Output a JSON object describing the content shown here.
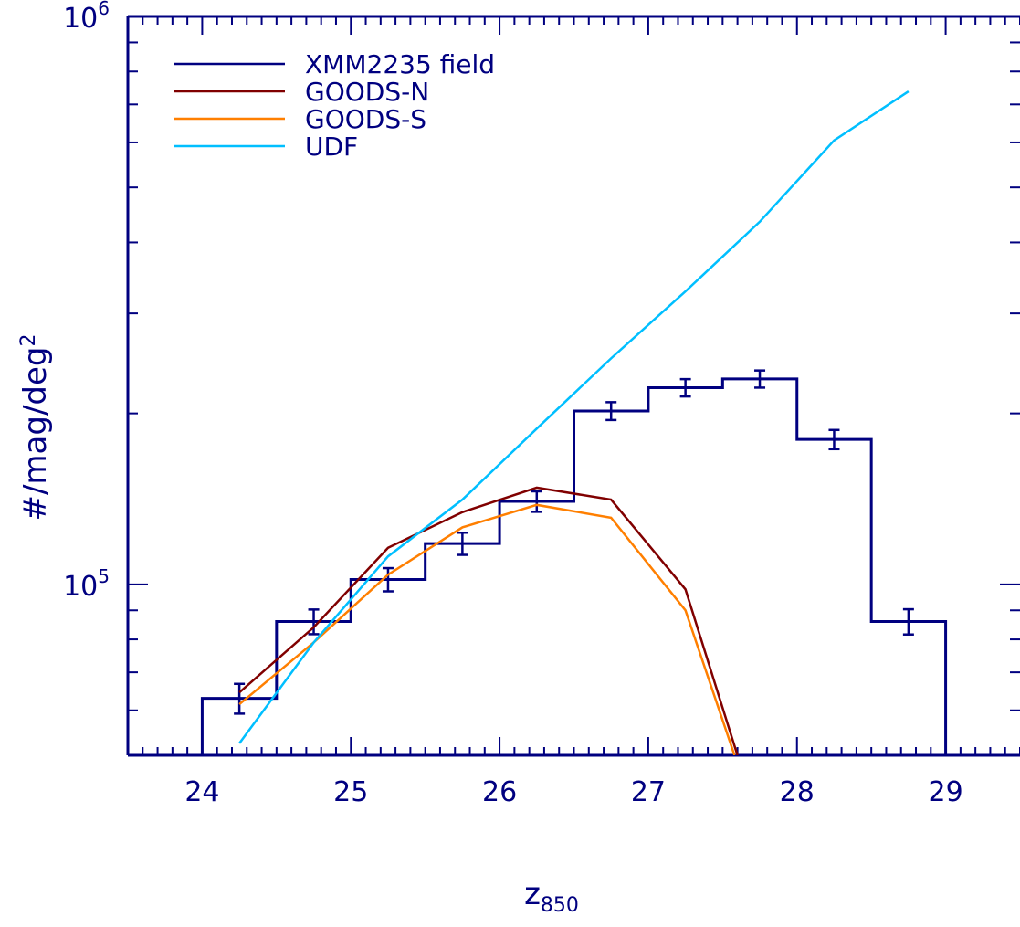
{
  "chart_data": {
    "type": "line",
    "x_axis": {
      "label_main": "z",
      "label_sub": "850",
      "range": [
        23.5,
        29.5
      ],
      "ticks": [
        24,
        25,
        26,
        27,
        28,
        29
      ],
      "tick_labels": [
        "24",
        "25",
        "26",
        "27",
        "28",
        "29"
      ],
      "minor_step": 0.1
    },
    "y_axis": {
      "label_main": "#/mag/deg",
      "label_sup": "2",
      "scale": "log",
      "range": [
        50000,
        1000000
      ],
      "major_ticks": [
        100000,
        1000000
      ],
      "tick_labels": [
        {
          "base": "10",
          "exp": "5"
        },
        {
          "base": "10",
          "exp": "6"
        }
      ],
      "minor_ticks": [
        60000,
        70000,
        80000,
        90000,
        200000,
        300000,
        400000,
        500000,
        600000,
        700000,
        800000,
        900000
      ]
    },
    "series": [
      {
        "name": "XMM2235 field",
        "style": "histogram",
        "color": "#000080",
        "bin_edges": [
          24.0,
          24.5,
          25.0,
          25.5,
          26.0,
          26.5,
          27.0,
          27.5,
          28.0,
          28.5,
          29.0
        ],
        "values": [
          63000,
          86000,
          102000,
          118000,
          140000,
          202000,
          222000,
          230000,
          180000,
          86000
        ],
        "errors": [
          3800,
          4300,
          4800,
          5300,
          5800,
          7300,
          7800,
          8000,
          7000,
          4400
        ]
      },
      {
        "name": "GOODS-N",
        "color": "#800000",
        "x": [
          24.25,
          24.75,
          25.25,
          25.75,
          26.25,
          26.75,
          27.25,
          27.6
        ],
        "y": [
          64500,
          84000,
          116000,
          134000,
          148000,
          141000,
          98000,
          50000
        ]
      },
      {
        "name": "GOODS-S",
        "color": "#ff7f00",
        "x": [
          24.25,
          24.75,
          25.25,
          25.75,
          26.25,
          26.75,
          27.25,
          27.58
        ],
        "y": [
          61500,
          79000,
          104000,
          126000,
          138000,
          131000,
          90000,
          50000
        ]
      },
      {
        "name": "UDF",
        "color": "#00bfff",
        "x": [
          24.25,
          24.75,
          25.25,
          25.75,
          26.25,
          26.75,
          27.25,
          27.75,
          28.25,
          28.75
        ],
        "y": [
          52500,
          79000,
          112000,
          141000,
          188000,
          250000,
          328000,
          435000,
          605000,
          738000
        ]
      }
    ],
    "legend_position": "top-left",
    "grid": false
  }
}
